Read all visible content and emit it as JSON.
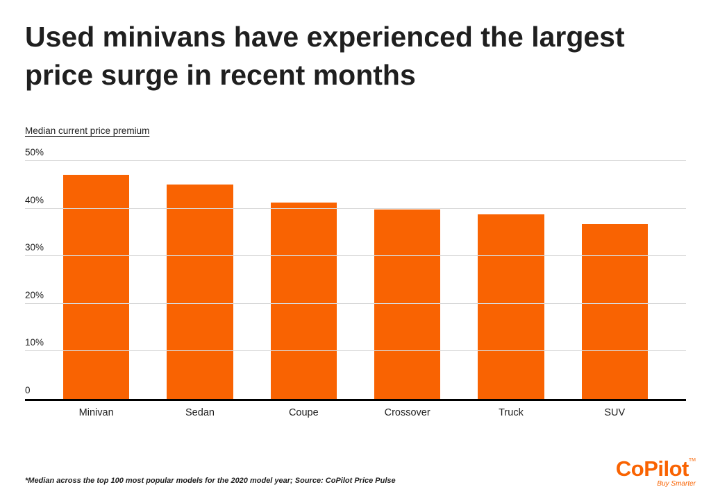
{
  "title": "Used minivans have experienced the largest price surge in recent months",
  "axis_title": "Median current price premium",
  "chart_data": {
    "type": "bar",
    "categories": [
      "Minivan",
      "Sedan",
      "Coupe",
      "Crossover",
      "Truck",
      "SUV"
    ],
    "values": [
      47,
      45,
      41.2,
      39.8,
      38.7,
      36.7
    ],
    "title": "Used minivans have experienced the largest price surge in recent months",
    "xlabel": "",
    "ylabel": "Median current price premium",
    "ylim": [
      0,
      50
    ],
    "yticks": [
      {
        "value": 50,
        "label": "50%"
      },
      {
        "value": 40,
        "label": "40%"
      },
      {
        "value": 30,
        "label": "30%"
      },
      {
        "value": 20,
        "label": "20%"
      },
      {
        "value": 10,
        "label": "10%"
      },
      {
        "value": 0,
        "label": "0"
      }
    ],
    "grid": true,
    "legend": "none",
    "bar_color": "#F96302"
  },
  "footnote": "*Median across the top 100 most popular models for the 2020 model year; Source:  CoPilot Price Pulse",
  "logo": {
    "text": "CoPilot",
    "tm": "TM",
    "tagline": "Buy Smarter",
    "color": "#F96302"
  }
}
